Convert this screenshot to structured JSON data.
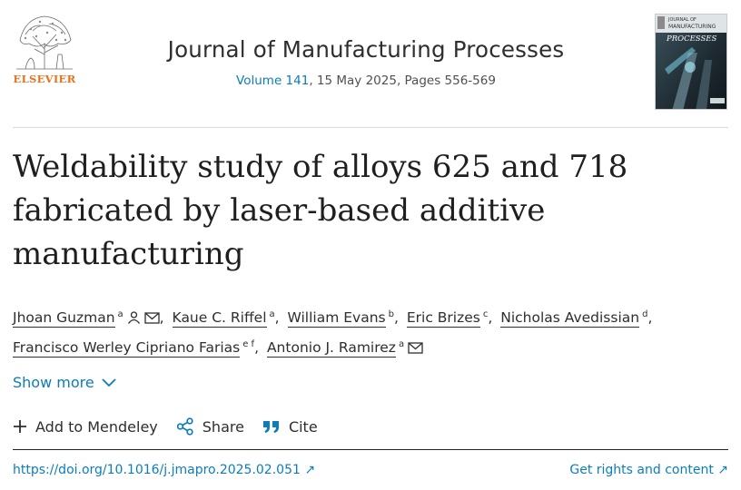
{
  "publisher": {
    "logo_text": "ELSEVIER"
  },
  "journal": {
    "title": "Journal of Manufacturing Processes",
    "volume": "Volume 141",
    "meta": ", 15 May 2025, Pages 556-569"
  },
  "cover": {
    "title_small": "JOURNAL OF",
    "title": "MANUFACTURING",
    "title2": "PROCESSES"
  },
  "article": {
    "title": "Weldability study of alloys 625 and 718 fabricated by laser-based additive manufacturing"
  },
  "authors": [
    {
      "name": "Jhoan Guzman",
      "aff": "a"
    },
    {
      "name": "Kaue C. Riffel",
      "aff": "a"
    },
    {
      "name": "William Evans",
      "aff": "b"
    },
    {
      "name": "Eric Brizes",
      "aff": "c"
    },
    {
      "name": "Nicholas Avedissian",
      "aff": "d"
    },
    {
      "name": "Francisco Werley Cipriano Farias",
      "aff": "e f"
    },
    {
      "name": "Antonio J. Ramirez",
      "aff": "a"
    }
  ],
  "show_more": "Show more",
  "actions": {
    "mendeley": "Add to Mendeley",
    "share": "Share",
    "cite": "Cite"
  },
  "links": {
    "doi": "https://doi.org/10.1016/j.jmapro.2025.02.051",
    "rights": "Get rights and content"
  },
  "colors": {
    "link": "#0c7dbb",
    "elsevier_orange": "#e9711c",
    "text": "#2e2e2e"
  }
}
